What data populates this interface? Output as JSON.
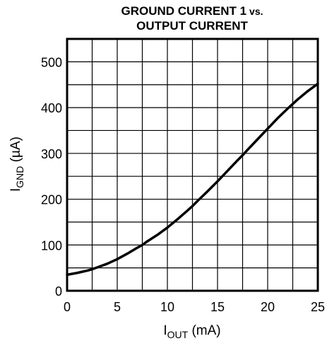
{
  "chart_data": {
    "type": "line",
    "title_line1": "GROUND CURRENT 1",
    "title_vs": "vs.",
    "title_line2": "OUTPUT CURRENT",
    "xlabel_main": "I",
    "xlabel_sub": "OUT",
    "xlabel_unit": " (mA)",
    "ylabel_main": "I",
    "ylabel_sub": "GND",
    "ylabel_unit": " (µA)",
    "xlim": [
      0,
      25
    ],
    "ylim": [
      0,
      550
    ],
    "x_ticks": [
      0,
      5,
      10,
      15,
      20,
      25
    ],
    "x_tick_labels": [
      "0",
      "5",
      "10",
      "15",
      "20",
      "25"
    ],
    "y_ticks": [
      0,
      100,
      200,
      300,
      400,
      500
    ],
    "y_tick_labels": [
      "0",
      "100",
      "200",
      "300",
      "400",
      "500"
    ],
    "x_grid": [
      2.5,
      5,
      7.5,
      10,
      12.5,
      15,
      17.5,
      20,
      22.5
    ],
    "y_grid": [
      50,
      100,
      150,
      200,
      250,
      300,
      350,
      400,
      450,
      500
    ],
    "grid": true,
    "series": [
      {
        "color": "#000000",
        "x": [
          0,
          1,
          2,
          2.5,
          3,
          4,
          5,
          6,
          7,
          7.5,
          8,
          9,
          10,
          11,
          12,
          12.5,
          13,
          14,
          15,
          16,
          17,
          17.5,
          18,
          19,
          20,
          21,
          22,
          22.5,
          23,
          24,
          25
        ],
        "y": [
          35,
          39,
          44,
          47,
          51,
          59,
          69,
          81,
          94,
          100,
          108,
          122,
          138,
          156,
          175,
          185,
          196,
          217,
          239,
          262,
          285,
          296,
          308,
          331,
          354,
          377,
          398,
          408,
          418,
          436,
          452
        ]
      }
    ]
  }
}
